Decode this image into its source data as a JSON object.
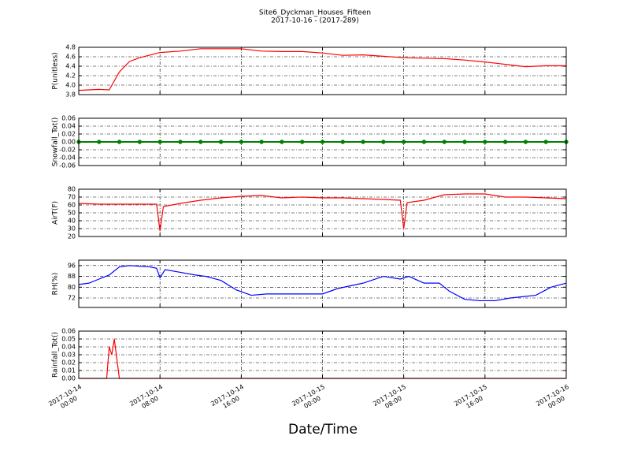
{
  "chart_data": [
    {
      "type": "line",
      "title": "Site6_Dyckman_Houses_Fifteen",
      "subtitle": "2017-10-16 - (2017-289)",
      "ylabel": "P(unitless)",
      "x": [
        "2017-10-14 00:00",
        "2017-10-14 02:00",
        "2017-10-14 03:00",
        "2017-10-14 04:00",
        "2017-10-14 05:00",
        "2017-10-14 06:00",
        "2017-10-14 08:00",
        "2017-10-14 10:00",
        "2017-10-14 12:00",
        "2017-10-14 14:00",
        "2017-10-14 16:00",
        "2017-10-14 18:00",
        "2017-10-14 20:00",
        "2017-10-14 22:00",
        "2017-10-15 00:00",
        "2017-10-15 02:00",
        "2017-10-15 04:00",
        "2017-10-15 06:00",
        "2017-10-15 08:00",
        "2017-10-15 10:00",
        "2017-10-15 12:00",
        "2017-10-15 14:00",
        "2017-10-15 16:00",
        "2017-10-15 18:00",
        "2017-10-15 20:00",
        "2017-10-15 22:00",
        "2017-10-16 00:00"
      ],
      "values": [
        3.89,
        3.91,
        3.9,
        4.28,
        4.5,
        4.58,
        4.69,
        4.72,
        4.77,
        4.77,
        4.77,
        4.72,
        4.71,
        4.71,
        4.68,
        4.63,
        4.64,
        4.61,
        4.58,
        4.57,
        4.56,
        4.53,
        4.49,
        4.44,
        4.39,
        4.41,
        4.41
      ],
      "color": "#ff0000",
      "xlim": [
        "2017-10-14 00:00",
        "2017-10-16 00:00"
      ],
      "xticks": [
        "2017-10-14 00:00",
        "2017-10-14 08:00",
        "2017-10-14 16:00",
        "2017-10-15 00:00",
        "2017-10-15 08:00",
        "2017-10-15 16:00",
        "2017-10-16 00:00"
      ],
      "ylim": [
        3.8,
        4.8
      ],
      "yticks": [
        3.8,
        {
          "value": 4.0,
          "label": "4.0"
        },
        4.2,
        4.4,
        4.6,
        4.8
      ],
      "grid": true
    },
    {
      "type": "line",
      "ylabel": "Snowfall_Tot()",
      "x": [
        "2017-10-14 00:00",
        "2017-10-14 02:00",
        "2017-10-14 04:00",
        "2017-10-14 06:00",
        "2017-10-14 08:00",
        "2017-10-14 10:00",
        "2017-10-14 12:00",
        "2017-10-14 14:00",
        "2017-10-14 16:00",
        "2017-10-14 18:00",
        "2017-10-14 20:00",
        "2017-10-14 22:00",
        "2017-10-15 00:00",
        "2017-10-15 02:00",
        "2017-10-15 04:00",
        "2017-10-15 06:00",
        "2017-10-15 08:00",
        "2017-10-15 10:00",
        "2017-10-15 12:00",
        "2017-10-15 14:00",
        "2017-10-15 16:00",
        "2017-10-15 18:00",
        "2017-10-15 20:00",
        "2017-10-15 22:00",
        "2017-10-16 00:00"
      ],
      "values": [
        0,
        0,
        0,
        0,
        0,
        0,
        0,
        0,
        0,
        0,
        0,
        0,
        0,
        0,
        0,
        0,
        0,
        0,
        0,
        0,
        0,
        0,
        0,
        0,
        0
      ],
      "color": "#008000",
      "markers": true,
      "xlim": [
        "2017-10-14 00:00",
        "2017-10-16 00:00"
      ],
      "xticks": [
        "2017-10-14 00:00",
        "2017-10-14 08:00",
        "2017-10-14 16:00",
        "2017-10-15 00:00",
        "2017-10-15 08:00",
        "2017-10-15 16:00",
        "2017-10-16 00:00"
      ],
      "ylim": [
        -0.06,
        0.06
      ],
      "yticks": [
        -0.06,
        -0.04,
        -0.02,
        {
          "value": 0,
          "label": "0.00"
        },
        0.02,
        0.04,
        0.06
      ],
      "grid": true
    },
    {
      "type": "line",
      "ylabel": "AirT(F)",
      "x": [
        "2017-10-14 00:00",
        "2017-10-14 02:00",
        "2017-10-14 04:00",
        "2017-10-14 06:00",
        "2017-10-14 07:40",
        "2017-10-14 08:00",
        "2017-10-14 08:20",
        "2017-10-14 10:00",
        "2017-10-14 12:00",
        "2017-10-14 14:00",
        "2017-10-14 16:00",
        "2017-10-14 18:00",
        "2017-10-14 20:00",
        "2017-10-14 22:00",
        "2017-10-15 00:00",
        "2017-10-15 02:00",
        "2017-10-15 04:00",
        "2017-10-15 06:00",
        "2017-10-15 07:40",
        "2017-10-15 08:00",
        "2017-10-15 08:20",
        "2017-10-15 10:00",
        "2017-10-15 12:00",
        "2017-10-15 14:00",
        "2017-10-15 16:00",
        "2017-10-15 18:00",
        "2017-10-15 20:00",
        "2017-10-15 22:00",
        "2017-10-16 00:00"
      ],
      "values": [
        62,
        61,
        61,
        61,
        61,
        27,
        58,
        62,
        66,
        69,
        71,
        72,
        69,
        70,
        69,
        69,
        68,
        67,
        66,
        30,
        63,
        66,
        73,
        74,
        74,
        70,
        70,
        69,
        68
      ],
      "color": "#ff0000",
      "xlim": [
        "2017-10-14 00:00",
        "2017-10-16 00:00"
      ],
      "xticks": [
        "2017-10-14 00:00",
        "2017-10-14 08:00",
        "2017-10-14 16:00",
        "2017-10-15 00:00",
        "2017-10-15 08:00",
        "2017-10-15 16:00",
        "2017-10-16 00:00"
      ],
      "ylim": [
        20,
        80
      ],
      "yticks": [
        20,
        30,
        40,
        50,
        60,
        70,
        80
      ],
      "grid": true
    },
    {
      "type": "line",
      "ylabel": "RH(%)",
      "x": [
        "2017-10-14 00:00",
        "2017-10-14 01:00",
        "2017-10-14 02:00",
        "2017-10-14 03:00",
        "2017-10-14 04:00",
        "2017-10-14 05:00",
        "2017-10-14 07:00",
        "2017-10-14 07:40",
        "2017-10-14 08:00",
        "2017-10-14 08:30",
        "2017-10-14 10:00",
        "2017-10-14 11:30",
        "2017-10-14 12:30",
        "2017-10-14 14:00",
        "2017-10-14 15:30",
        "2017-10-14 17:00",
        "2017-10-14 18:30",
        "2017-10-14 20:00",
        "2017-10-14 22:00",
        "2017-10-15 00:00",
        "2017-10-15 01:30",
        "2017-10-15 04:00",
        "2017-10-15 06:00",
        "2017-10-15 07:40",
        "2017-10-15 08:30",
        "2017-10-15 10:00",
        "2017-10-15 11:30",
        "2017-10-15 12:30",
        "2017-10-15 14:00",
        "2017-10-15 15:30",
        "2017-10-15 17:00",
        "2017-10-15 18:30",
        "2017-10-15 21:00",
        "2017-10-15 22:30",
        "2017-10-16 00:00"
      ],
      "values": [
        82,
        83,
        86,
        89,
        95,
        96,
        95,
        94,
        87,
        93,
        91,
        89,
        88,
        85,
        78,
        74,
        75,
        75,
        75,
        75,
        79,
        83,
        88,
        86,
        88,
        83,
        83,
        77,
        71,
        70,
        70,
        72,
        74,
        80,
        83
      ],
      "color": "#0000ff",
      "xlim": [
        "2017-10-14 00:00",
        "2017-10-16 00:00"
      ],
      "xticks": [
        "2017-10-14 00:00",
        "2017-10-14 08:00",
        "2017-10-14 16:00",
        "2017-10-15 00:00",
        "2017-10-15 08:00",
        "2017-10-15 16:00",
        "2017-10-16 00:00"
      ],
      "ylim": [
        65,
        100
      ],
      "yticks": [
        72,
        80,
        88,
        96
      ],
      "grid": true
    },
    {
      "type": "line",
      "ylabel": "Rainfall_Tot()",
      "xlabel": "Date/Time",
      "x": [
        "2017-10-14 00:00",
        "2017-10-14 02:45",
        "2017-10-14 03:00",
        "2017-10-14 03:15",
        "2017-10-14 03:30",
        "2017-10-14 04:00",
        "2017-10-16 00:00"
      ],
      "values": [
        0,
        0,
        0.04,
        0.03,
        0.05,
        0,
        0
      ],
      "color": "#ff0000",
      "xlim": [
        "2017-10-14 00:00",
        "2017-10-16 00:00"
      ],
      "xticks": [
        {
          "value": "2017-10-14 00:00",
          "label": "2017-10-14\n00:00"
        },
        {
          "value": "2017-10-14 08:00",
          "label": "2017-10-14\n08:00"
        },
        {
          "value": "2017-10-14 16:00",
          "label": "2017-10-14\n16:00"
        },
        {
          "value": "2017-10-15 00:00",
          "label": "2017-10-15\n00:00"
        },
        {
          "value": "2017-10-15 08:00",
          "label": "2017-10-15\n08:00"
        },
        {
          "value": "2017-10-15 16:00",
          "label": "2017-10-15\n16:00"
        },
        {
          "value": "2017-10-16 00:00",
          "label": "2017-10-16\n00:00"
        }
      ],
      "ylim": [
        0,
        0.06
      ],
      "yticks": [
        {
          "value": 0,
          "label": "0.00"
        },
        0.01,
        0.02,
        0.03,
        0.04,
        0.05,
        0.06
      ],
      "grid": true
    }
  ]
}
